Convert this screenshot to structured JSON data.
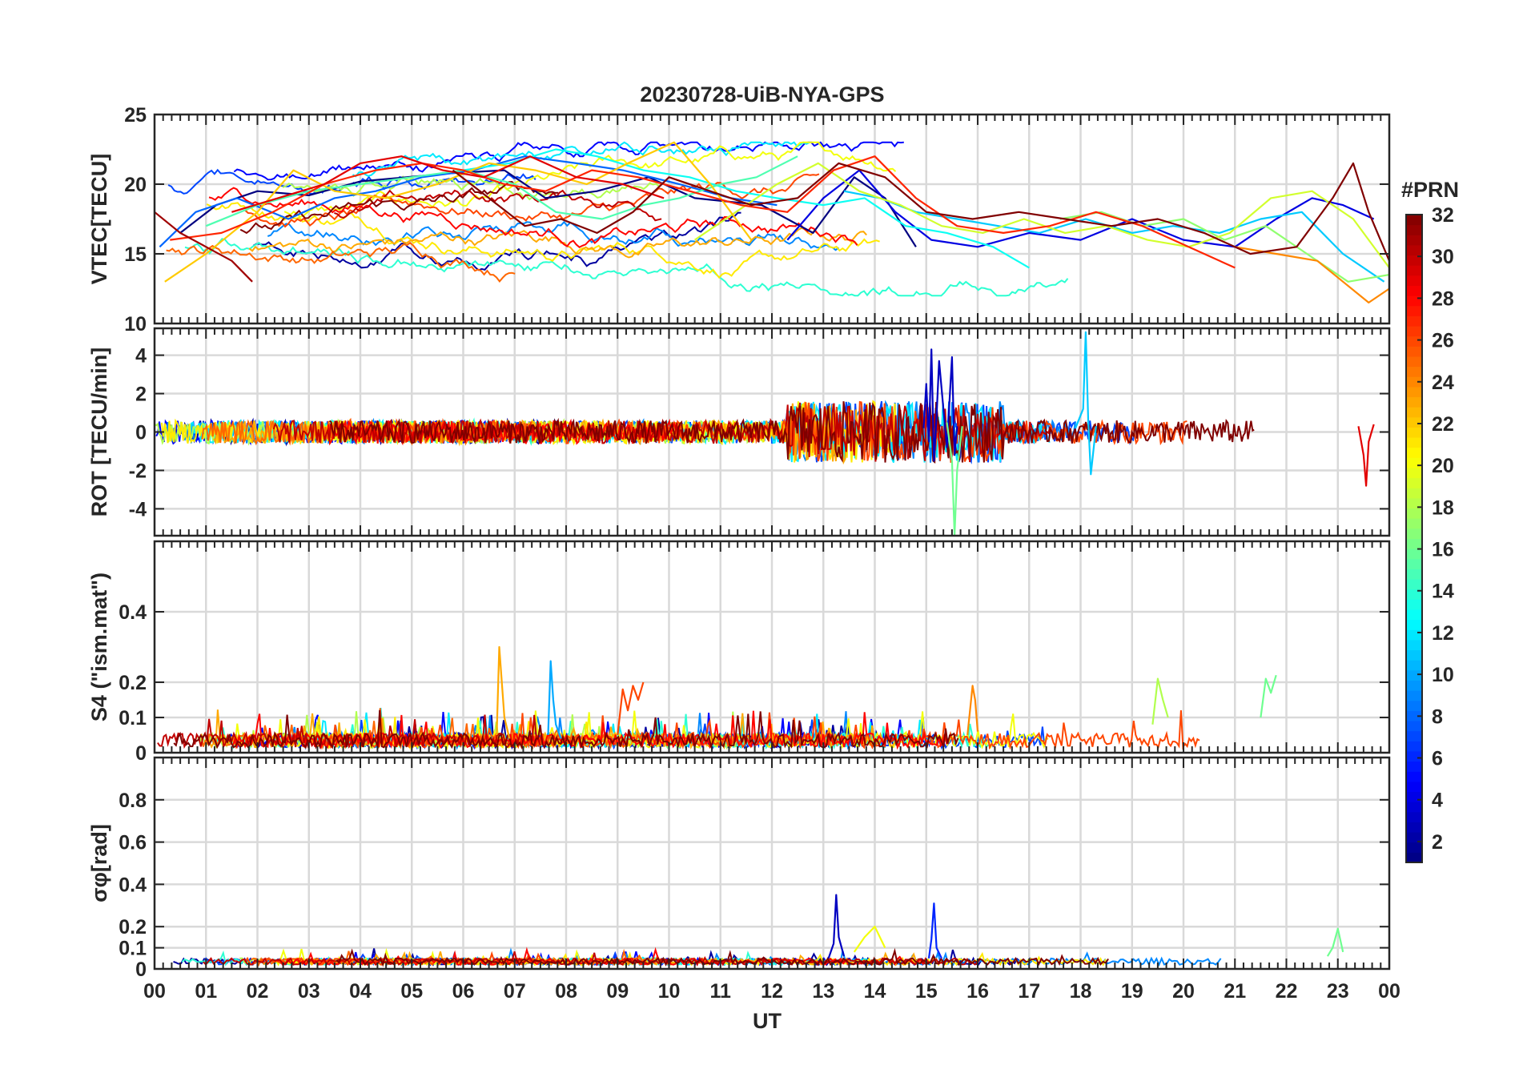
{
  "figure": {
    "title": "20230728-UiB-NYA-GPS",
    "xlabel": "UT"
  },
  "chart_data": [
    {
      "type": "line",
      "panel": "vtec",
      "ylabel": "VTEC[TECU]",
      "xlim": [
        0,
        24
      ],
      "ylim": [
        10,
        25
      ],
      "yticks": [
        10,
        15,
        20,
        25
      ],
      "grid": true,
      "series_color_by": "PRN",
      "series": [
        {
          "prn": 1,
          "x": [
            0.5,
            1.2,
            2,
            3,
            4,
            5.8,
            6.8,
            7.6,
            8.6,
            9.6,
            10.5,
            11.8,
            12.8,
            13.6,
            14.2,
            14.8
          ],
          "y": [
            16.5,
            18.5,
            19.5,
            19.2,
            20.2,
            20.8,
            21,
            19,
            19.5,
            20.5,
            19,
            18.5,
            16.5,
            20.5,
            19,
            15.5
          ]
        },
        {
          "prn": 4,
          "x": [
            12.3,
            13.0,
            13.7,
            14.4,
            15.1,
            16.0,
            17.0,
            18.0,
            19.0,
            20.0,
            21.0,
            21.8,
            22.5,
            23.1,
            23.7
          ],
          "y": [
            16,
            19,
            21,
            18,
            16,
            15.5,
            16.5,
            16,
            17.5,
            16,
            15.5,
            17.5,
            19,
            18.5,
            17.5
          ]
        },
        {
          "prn": 8,
          "x": [
            0.1,
            0.8,
            1.6,
            2.6,
            3.5,
            4.3,
            5.2,
            6.2,
            7.2,
            8.2,
            9.1,
            10.2,
            11.2,
            12.1
          ],
          "y": [
            15.5,
            18,
            19,
            17.5,
            19,
            19.5,
            20.5,
            21,
            22,
            21.5,
            21,
            20,
            19,
            18.5
          ]
        },
        {
          "prn": 11,
          "x": [
            13.4,
            14.1,
            14.8,
            15.6,
            16.4,
            17.2,
            18.1,
            19.0,
            19.8,
            20.7,
            21.5,
            22.3,
            23.1,
            23.9
          ],
          "y": [
            19.5,
            19,
            18,
            17.5,
            17,
            16.5,
            17.5,
            16.5,
            17,
            16.5,
            17.5,
            18,
            15,
            13
          ]
        },
        {
          "prn": 13,
          "x": [
            6.0,
            6.9,
            7.8,
            8.6,
            9.5,
            10.4,
            11.3,
            12.1,
            13.0,
            13.8,
            14.6,
            15.4,
            16.3,
            17.0
          ],
          "y": [
            21,
            21.5,
            22.5,
            22,
            21,
            20.5,
            19.5,
            19,
            18.5,
            19,
            17,
            16.5,
            15.5,
            14
          ]
        },
        {
          "prn": 15,
          "x": [
            1.0,
            2.0,
            3.0,
            4.0,
            5.0,
            6.0,
            7.0,
            7.8,
            8.7,
            9.5,
            10.2,
            11.0,
            11.7,
            12.5
          ],
          "y": [
            17,
            18.5,
            19.5,
            20,
            20.5,
            21,
            20,
            18,
            17.5,
            18.5,
            19,
            20,
            20.5,
            22
          ]
        },
        {
          "prn": 17,
          "x": [
            17.6,
            18.4,
            19.2,
            20.0,
            20.8,
            21.6,
            22.4,
            23.2,
            24.0
          ],
          "y": [
            17.5,
            18,
            17,
            17.5,
            16,
            17,
            15,
            13,
            13.5
          ]
        },
        {
          "prn": 19,
          "x": [
            10.5,
            11.3,
            12.1,
            12.9,
            13.7,
            14.5,
            15.3,
            16.1,
            16.9,
            17.7,
            18.5,
            19.3,
            20.1,
            20.9,
            21.7,
            22.5,
            23.3,
            24.0
          ],
          "y": [
            16,
            18,
            20,
            21.5,
            19.5,
            18.5,
            17,
            16.5,
            17.5,
            16.5,
            17,
            16,
            15.5,
            16.5,
            19,
            19.5,
            17.5,
            14
          ]
        },
        {
          "prn": 22,
          "x": [
            0.2,
            1.0,
            2.0,
            2.7,
            3.5,
            4.5,
            5.5,
            6.5,
            7.4,
            8.4,
            9.2,
            10.1,
            10.8,
            11.6
          ],
          "y": [
            13,
            15,
            18,
            21,
            19.5,
            19,
            20,
            21.5,
            21,
            20,
            21.5,
            23,
            20,
            16
          ]
        },
        {
          "prn": 24,
          "x": [
            21.0,
            21.8,
            22.6,
            23.1,
            23.6,
            24.0
          ],
          "y": [
            15.5,
            15,
            14.5,
            13,
            11.5,
            12.5
          ]
        },
        {
          "prn": 27,
          "x": [
            0.3,
            1.3,
            2.3,
            3.3,
            4.3,
            5.2,
            6.0,
            6.8,
            7.6,
            8.5,
            9.4,
            10.4,
            11.4,
            12.3,
            13.2,
            14.0,
            14.8,
            15.6,
            16.5,
            17.4,
            18.3,
            19.2,
            20.1,
            21.0
          ],
          "y": [
            16,
            16.5,
            18,
            20,
            21,
            21.5,
            21,
            20,
            19.5,
            21,
            20.5,
            19.5,
            18.5,
            18,
            21,
            22,
            19,
            17,
            16.5,
            17,
            18,
            17,
            15.5,
            14
          ]
        },
        {
          "prn": 29,
          "x": [
            1.5,
            2.4,
            3.3,
            4.0,
            4.8,
            5.6,
            6.4,
            7.3,
            8.2,
            9.1,
            9.9
          ],
          "y": [
            18,
            19,
            20,
            21.5,
            22,
            21,
            20.5,
            22,
            20.5,
            20,
            19
          ]
        },
        {
          "prn": 31,
          "x": [
            0.0,
            0.5,
            1.0,
            1.5,
            1.9
          ],
          "y": [
            18,
            16.5,
            15.5,
            14.5,
            13
          ]
        },
        {
          "prn": 32,
          "x": [
            5.8,
            6.5,
            7.2,
            7.9,
            8.6,
            9.3,
            10.0,
            10.8,
            11.6,
            12.5,
            13.3,
            14.2,
            15.0,
            15.9,
            16.8,
            17.7,
            18.6,
            19.5,
            20.4,
            21.3,
            22.2,
            22.9,
            23.3,
            23.6,
            24.0
          ],
          "y": [
            21,
            19,
            17,
            17.5,
            16.5,
            18,
            20.5,
            19.5,
            18.5,
            19,
            21.5,
            20.5,
            18,
            17.5,
            18,
            17.5,
            17,
            17.5,
            16.5,
            15,
            15.5,
            19,
            21.5,
            18,
            14.5
          ]
        }
      ]
    },
    {
      "type": "line",
      "panel": "rot",
      "ylabel": "ROT [TECU/min]",
      "xlim": [
        0,
        24
      ],
      "ylim": [
        -5.4,
        5.4
      ],
      "yticks": [
        -4,
        -2,
        0,
        2,
        4
      ],
      "grid": true,
      "series_color_by": "PRN",
      "series": [
        {
          "prn": 3,
          "x": [
            14.95,
            15.0,
            15.05,
            15.1,
            15.15,
            15.2,
            15.25,
            15.4,
            15.5,
            15.55,
            15.6
          ],
          "y": [
            0.2,
            2.5,
            -0.5,
            4.3,
            -1.5,
            0.8,
            3.7,
            -0.8,
            3.9,
            -1.2,
            0.3
          ]
        },
        {
          "prn": 11,
          "x": [
            17.9,
            18.05,
            18.1,
            18.15,
            18.2,
            18.3
          ],
          "y": [
            0.2,
            1.2,
            5.2,
            0.5,
            -2.2,
            0.3
          ]
        },
        {
          "prn": 16,
          "x": [
            15.4,
            15.5,
            15.55,
            15.6,
            15.7
          ],
          "y": [
            0.5,
            -1.5,
            -5.4,
            -2,
            0.3
          ]
        },
        {
          "prn": 29,
          "x": [
            23.4,
            23.5,
            23.55,
            23.6,
            23.7
          ],
          "y": [
            0.3,
            -1.2,
            -2.8,
            -0.5,
            0.4
          ]
        }
      ]
    },
    {
      "type": "line",
      "panel": "s4",
      "ylabel": "S4 (\"ism.mat\")",
      "xlim": [
        0,
        24
      ],
      "ylim": [
        0,
        0.6
      ],
      "yticks": [
        0,
        0.1,
        0.2,
        0.4
      ],
      "grid": true,
      "series_color_by": "PRN",
      "series": [
        {
          "prn": 10,
          "x": [
            7.65,
            7.7,
            7.75,
            7.8,
            7.9
          ],
          "y": [
            0.05,
            0.26,
            0.15,
            0.08,
            0.04
          ]
        },
        {
          "prn": 23,
          "x": [
            6.65,
            6.7,
            6.75,
            6.8,
            6.9
          ],
          "y": [
            0.05,
            0.3,
            0.2,
            0.1,
            0.04
          ]
        },
        {
          "prn": 26,
          "x": [
            9.0,
            9.1,
            9.2,
            9.3,
            9.4,
            9.5
          ],
          "y": [
            0.05,
            0.18,
            0.12,
            0.19,
            0.15,
            0.2
          ]
        },
        {
          "prn": 18,
          "x": [
            19.4,
            19.5,
            19.6,
            19.7
          ],
          "y": [
            0.08,
            0.21,
            0.15,
            0.1
          ]
        },
        {
          "prn": 16,
          "x": [
            21.5,
            21.6,
            21.7,
            21.8
          ],
          "y": [
            0.1,
            0.21,
            0.17,
            0.22
          ]
        },
        {
          "prn": 24,
          "x": [
            15.8,
            15.9,
            15.95,
            16.0
          ],
          "y": [
            0.05,
            0.19,
            0.15,
            0.06
          ]
        }
      ]
    },
    {
      "type": "line",
      "panel": "sigma-phi",
      "ylabel": "σφ[rad]",
      "xlim": [
        0,
        24
      ],
      "ylim": [
        0,
        1.0
      ],
      "yticks": [
        0,
        0.1,
        0.2,
        0.4,
        0.6,
        0.8
      ],
      "grid": true,
      "series_color_by": "PRN",
      "series": [
        {
          "prn": 3,
          "x": [
            13.1,
            13.2,
            13.25,
            13.3,
            13.4
          ],
          "y": [
            0.05,
            0.12,
            0.35,
            0.15,
            0.06
          ]
        },
        {
          "prn": 6,
          "x": [
            15.05,
            15.1,
            15.15,
            15.2,
            15.3
          ],
          "y": [
            0.05,
            0.14,
            0.31,
            0.1,
            0.05
          ]
        },
        {
          "prn": 20,
          "x": [
            13.6,
            13.8,
            14.0,
            14.2
          ],
          "y": [
            0.08,
            0.15,
            0.2,
            0.1
          ]
        },
        {
          "prn": 16,
          "x": [
            22.8,
            22.9,
            23.0,
            23.1
          ],
          "y": [
            0.06,
            0.1,
            0.19,
            0.08
          ]
        }
      ]
    }
  ],
  "xticks": [
    "00",
    "01",
    "02",
    "03",
    "04",
    "05",
    "06",
    "07",
    "08",
    "09",
    "10",
    "11",
    "12",
    "13",
    "14",
    "15",
    "16",
    "17",
    "18",
    "19",
    "20",
    "21",
    "22",
    "23",
    "00"
  ],
  "colorbar": {
    "label": "#PRN",
    "min": 1,
    "max": 32,
    "ticks": [
      2,
      4,
      6,
      8,
      10,
      12,
      14,
      16,
      18,
      20,
      22,
      24,
      26,
      28,
      30,
      32
    ],
    "colormap": "jet"
  }
}
